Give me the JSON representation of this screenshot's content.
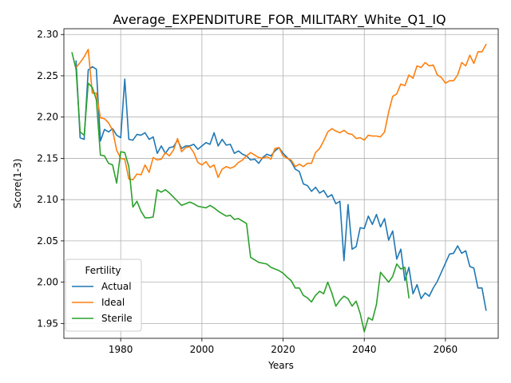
{
  "chart_data": {
    "type": "line",
    "title": "Average_EXPENDITURE_FOR_MILITARY_White_Q1_IQ",
    "xlabel": "Years",
    "ylabel": "Score(1-3)",
    "xlim": [
      1966,
      2073
    ],
    "ylim": [
      1.932,
      2.307
    ],
    "grid": true,
    "legend": {
      "title": "Fertility",
      "placement": "lower-left"
    },
    "x_ticks": [
      1980,
      2000,
      2020,
      2040,
      2060
    ],
    "y_ticks": [
      1.95,
      2.0,
      2.05,
      2.1,
      2.15,
      2.2,
      2.25,
      2.3
    ],
    "x_tick_labels": [
      "1980",
      "2000",
      "2020",
      "2040",
      "2060"
    ],
    "y_tick_labels": [
      "1.95",
      "2.00",
      "2.05",
      "2.10",
      "2.15",
      "2.20",
      "2.25",
      "2.30"
    ],
    "series": [
      {
        "name": "Actual",
        "color": "#1f77b4",
        "points": [
          [
            1969,
            2.268
          ],
          [
            1970,
            2.175
          ],
          [
            1971,
            2.173
          ],
          [
            1972,
            2.257
          ],
          [
            1973,
            2.261
          ],
          [
            1974,
            2.258
          ],
          [
            1975,
            2.171
          ],
          [
            1976,
            2.185
          ],
          [
            1977,
            2.182
          ],
          [
            1978,
            2.186
          ],
          [
            1979,
            2.178
          ],
          [
            1980,
            2.175
          ],
          [
            1981,
            2.246
          ],
          [
            1982,
            2.173
          ],
          [
            1983,
            2.172
          ],
          [
            1984,
            2.179
          ],
          [
            1985,
            2.178
          ],
          [
            1986,
            2.181
          ],
          [
            1987,
            2.173
          ],
          [
            1988,
            2.176
          ],
          [
            1989,
            2.156
          ],
          [
            1990,
            2.165
          ],
          [
            1991,
            2.156
          ],
          [
            1992,
            2.163
          ],
          [
            1993,
            2.164
          ],
          [
            1994,
            2.172
          ],
          [
            1995,
            2.162
          ],
          [
            1996,
            2.165
          ],
          [
            1997,
            2.165
          ],
          [
            1998,
            2.167
          ],
          [
            1999,
            2.161
          ],
          [
            2000,
            2.165
          ],
          [
            2001,
            2.169
          ],
          [
            2002,
            2.167
          ],
          [
            2003,
            2.181
          ],
          [
            2004,
            2.165
          ],
          [
            2005,
            2.173
          ],
          [
            2006,
            2.166
          ],
          [
            2007,
            2.167
          ],
          [
            2008,
            2.156
          ],
          [
            2009,
            2.159
          ],
          [
            2010,
            2.155
          ],
          [
            2011,
            2.153
          ],
          [
            2012,
            2.148
          ],
          [
            2013,
            2.149
          ],
          [
            2014,
            2.144
          ],
          [
            2015,
            2.151
          ],
          [
            2016,
            2.155
          ],
          [
            2017,
            2.153
          ],
          [
            2018,
            2.159
          ],
          [
            2019,
            2.163
          ],
          [
            2020,
            2.156
          ],
          [
            2021,
            2.151
          ],
          [
            2022,
            2.146
          ],
          [
            2023,
            2.137
          ],
          [
            2024,
            2.134
          ],
          [
            2025,
            2.119
          ],
          [
            2026,
            2.117
          ],
          [
            2027,
            2.11
          ],
          [
            2028,
            2.115
          ],
          [
            2029,
            2.108
          ],
          [
            2030,
            2.111
          ],
          [
            2031,
            2.103
          ],
          [
            2032,
            2.106
          ],
          [
            2033,
            2.095
          ],
          [
            2034,
            2.098
          ],
          [
            2035,
            2.026
          ],
          [
            2036,
            2.094
          ],
          [
            2037,
            2.04
          ],
          [
            2038,
            2.043
          ],
          [
            2039,
            2.066
          ],
          [
            2040,
            2.065
          ],
          [
            2041,
            2.08
          ],
          [
            2042,
            2.07
          ],
          [
            2043,
            2.082
          ],
          [
            2044,
            2.067
          ],
          [
            2045,
            2.077
          ],
          [
            2046,
            2.051
          ],
          [
            2047,
            2.062
          ],
          [
            2048,
            2.028
          ],
          [
            2049,
            2.04
          ],
          [
            2050,
            2.002
          ],
          [
            2051,
            2.018
          ],
          [
            2052,
            1.986
          ],
          [
            2053,
            1.997
          ],
          [
            2054,
            1.98
          ],
          [
            2055,
            1.987
          ],
          [
            2056,
            1.983
          ],
          [
            2057,
            1.993
          ],
          [
            2058,
            2.001
          ],
          [
            2059,
            2.012
          ],
          [
            2060,
            2.023
          ],
          [
            2061,
            2.034
          ],
          [
            2062,
            2.035
          ],
          [
            2063,
            2.044
          ],
          [
            2064,
            2.035
          ],
          [
            2065,
            2.038
          ],
          [
            2066,
            2.019
          ],
          [
            2067,
            2.017
          ],
          [
            2068,
            1.993
          ],
          [
            2069,
            1.993
          ],
          [
            2070,
            1.966
          ]
        ]
      },
      {
        "name": "Ideal",
        "color": "#ff7f0e",
        "points": [
          [
            1969,
            2.26
          ],
          [
            1970,
            2.266
          ],
          [
            1971,
            2.273
          ],
          [
            1972,
            2.282
          ],
          [
            1973,
            2.229
          ],
          [
            1974,
            2.229
          ],
          [
            1975,
            2.199
          ],
          [
            1976,
            2.198
          ],
          [
            1977,
            2.193
          ],
          [
            1978,
            2.184
          ],
          [
            1979,
            2.16
          ],
          [
            1980,
            2.15
          ],
          [
            1981,
            2.149
          ],
          [
            1982,
            2.125
          ],
          [
            1983,
            2.124
          ],
          [
            1984,
            2.131
          ],
          [
            1985,
            2.13
          ],
          [
            1986,
            2.142
          ],
          [
            1987,
            2.133
          ],
          [
            1988,
            2.151
          ],
          [
            1989,
            2.148
          ],
          [
            1990,
            2.149
          ],
          [
            1991,
            2.157
          ],
          [
            1992,
            2.153
          ],
          [
            1993,
            2.16
          ],
          [
            1994,
            2.174
          ],
          [
            1995,
            2.158
          ],
          [
            1996,
            2.163
          ],
          [
            1997,
            2.164
          ],
          [
            1998,
            2.157
          ],
          [
            1999,
            2.145
          ],
          [
            2000,
            2.142
          ],
          [
            2001,
            2.146
          ],
          [
            2002,
            2.139
          ],
          [
            2003,
            2.142
          ],
          [
            2004,
            2.127
          ],
          [
            2005,
            2.137
          ],
          [
            2006,
            2.14
          ],
          [
            2007,
            2.138
          ],
          [
            2008,
            2.14
          ],
          [
            2009,
            2.145
          ],
          [
            2010,
            2.148
          ],
          [
            2011,
            2.153
          ],
          [
            2012,
            2.157
          ],
          [
            2013,
            2.154
          ],
          [
            2014,
            2.151
          ],
          [
            2015,
            2.15
          ],
          [
            2016,
            2.152
          ],
          [
            2017,
            2.149
          ],
          [
            2018,
            2.162
          ],
          [
            2019,
            2.163
          ],
          [
            2020,
            2.153
          ],
          [
            2021,
            2.15
          ],
          [
            2022,
            2.148
          ],
          [
            2023,
            2.14
          ],
          [
            2024,
            2.143
          ],
          [
            2025,
            2.14
          ],
          [
            2026,
            2.144
          ],
          [
            2027,
            2.144
          ],
          [
            2028,
            2.157
          ],
          [
            2029,
            2.162
          ],
          [
            2030,
            2.171
          ],
          [
            2031,
            2.182
          ],
          [
            2032,
            2.186
          ],
          [
            2033,
            2.183
          ],
          [
            2034,
            2.181
          ],
          [
            2035,
            2.184
          ],
          [
            2036,
            2.18
          ],
          [
            2037,
            2.179
          ],
          [
            2038,
            2.174
          ],
          [
            2039,
            2.175
          ],
          [
            2040,
            2.172
          ],
          [
            2041,
            2.178
          ],
          [
            2042,
            2.177
          ],
          [
            2043,
            2.177
          ],
          [
            2044,
            2.176
          ],
          [
            2045,
            2.182
          ],
          [
            2046,
            2.206
          ],
          [
            2047,
            2.225
          ],
          [
            2048,
            2.228
          ],
          [
            2049,
            2.24
          ],
          [
            2050,
            2.238
          ],
          [
            2051,
            2.251
          ],
          [
            2052,
            2.247
          ],
          [
            2053,
            2.262
          ],
          [
            2054,
            2.26
          ],
          [
            2055,
            2.266
          ],
          [
            2056,
            2.262
          ],
          [
            2057,
            2.263
          ],
          [
            2058,
            2.251
          ],
          [
            2059,
            2.248
          ],
          [
            2060,
            2.241
          ],
          [
            2061,
            2.244
          ],
          [
            2062,
            2.244
          ],
          [
            2063,
            2.251
          ],
          [
            2064,
            2.266
          ],
          [
            2065,
            2.262
          ],
          [
            2066,
            2.275
          ],
          [
            2067,
            2.265
          ],
          [
            2068,
            2.279
          ],
          [
            2069,
            2.279
          ],
          [
            2070,
            2.288
          ]
        ]
      },
      {
        "name": "Sterile",
        "color": "#2ca02c",
        "points": [
          [
            1968,
            2.278
          ],
          [
            1969,
            2.258
          ],
          [
            1970,
            2.182
          ],
          [
            1971,
            2.178
          ],
          [
            1972,
            2.241
          ],
          [
            1973,
            2.236
          ],
          [
            1974,
            2.221
          ],
          [
            1975,
            2.154
          ],
          [
            1976,
            2.153
          ],
          [
            1977,
            2.144
          ],
          [
            1978,
            2.142
          ],
          [
            1979,
            2.12
          ],
          [
            1980,
            2.158
          ],
          [
            1981,
            2.157
          ],
          [
            1982,
            2.14
          ],
          [
            1983,
            2.091
          ],
          [
            1984,
            2.098
          ],
          [
            1985,
            2.086
          ],
          [
            1986,
            2.078
          ],
          [
            1987,
            2.078
          ],
          [
            1988,
            2.079
          ],
          [
            1989,
            2.112
          ],
          [
            1990,
            2.109
          ],
          [
            1991,
            2.112
          ],
          [
            1992,
            2.108
          ],
          [
            1993,
            2.103
          ],
          [
            1994,
            2.098
          ],
          [
            1995,
            2.093
          ],
          [
            1996,
            2.095
          ],
          [
            1997,
            2.097
          ],
          [
            1998,
            2.095
          ],
          [
            1999,
            2.092
          ],
          [
            2000,
            2.091
          ],
          [
            2001,
            2.09
          ],
          [
            2002,
            2.093
          ],
          [
            2003,
            2.09
          ],
          [
            2004,
            2.086
          ],
          [
            2005,
            2.083
          ],
          [
            2006,
            2.08
          ],
          [
            2007,
            2.081
          ],
          [
            2008,
            2.076
          ],
          [
            2009,
            2.077
          ],
          [
            2010,
            2.074
          ],
          [
            2011,
            2.071
          ],
          [
            2012,
            2.03
          ],
          [
            2013,
            2.027
          ],
          [
            2014,
            2.024
          ],
          [
            2015,
            2.023
          ],
          [
            2016,
            2.022
          ],
          [
            2017,
            2.018
          ],
          [
            2018,
            2.016
          ],
          [
            2019,
            2.014
          ],
          [
            2020,
            2.011
          ],
          [
            2021,
            2.006
          ],
          [
            2022,
            2.002
          ],
          [
            2023,
            1.993
          ],
          [
            2024,
            1.993
          ],
          [
            2025,
            1.984
          ],
          [
            2026,
            1.981
          ],
          [
            2027,
            1.976
          ],
          [
            2028,
            1.984
          ],
          [
            2029,
            1.989
          ],
          [
            2030,
            1.986
          ],
          [
            2031,
            2.0
          ],
          [
            2032,
            1.987
          ],
          [
            2033,
            1.971
          ],
          [
            2034,
            1.978
          ],
          [
            2035,
            1.983
          ],
          [
            2036,
            1.98
          ],
          [
            2037,
            1.971
          ],
          [
            2038,
            1.977
          ],
          [
            2039,
            1.962
          ],
          [
            2040,
            1.94
          ],
          [
            2041,
            1.957
          ],
          [
            2042,
            1.954
          ],
          [
            2043,
            1.973
          ],
          [
            2044,
            2.012
          ],
          [
            2045,
            2.006
          ],
          [
            2046,
            2.0
          ],
          [
            2047,
            2.007
          ],
          [
            2048,
            2.022
          ],
          [
            2049,
            2.016
          ],
          [
            2050,
            2.018
          ],
          [
            2051,
            1.981
          ]
        ]
      }
    ]
  }
}
